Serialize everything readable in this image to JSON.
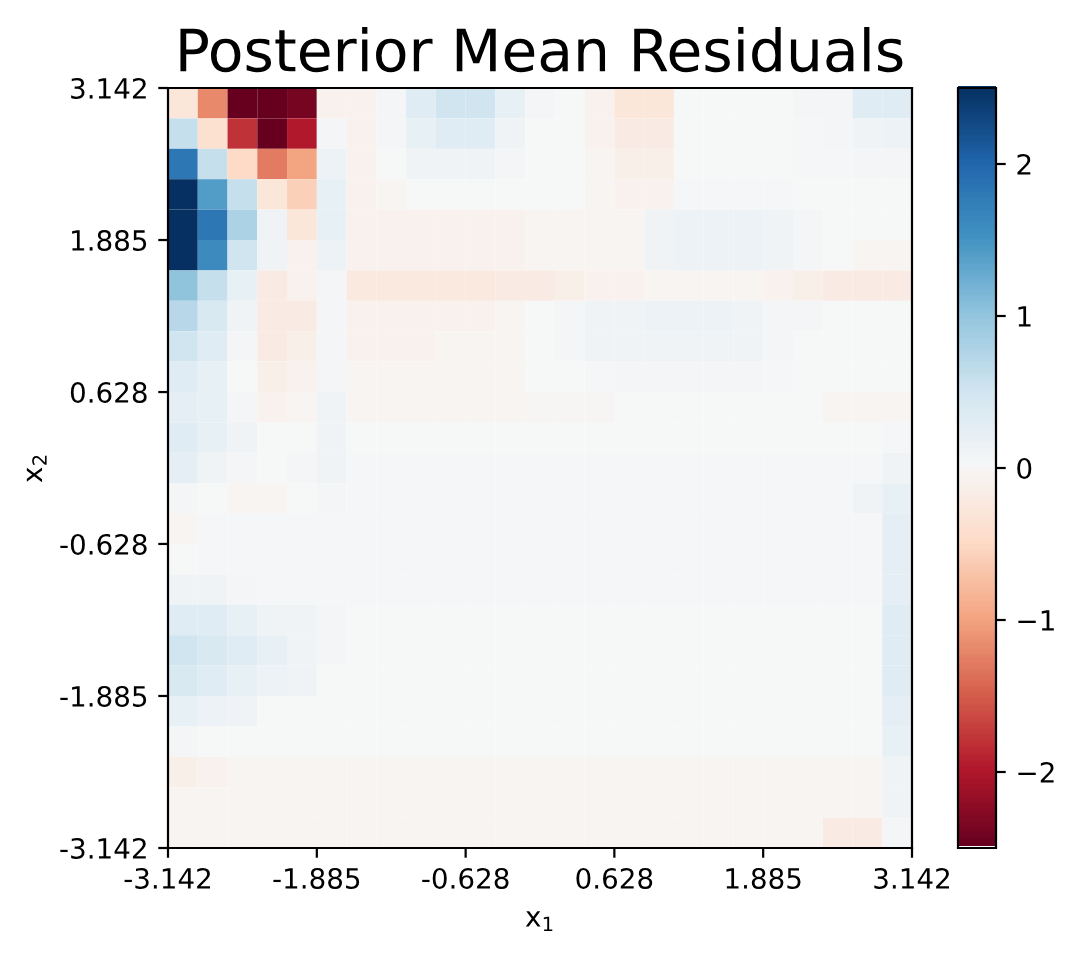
{
  "chart_data": {
    "type": "heatmap",
    "title": "Posterior Mean Residuals",
    "xlabel": "x$_{1}$",
    "ylabel": "x$_{2}$",
    "xlim": [
      -3.142,
      3.142
    ],
    "ylim": [
      -3.142,
      3.142
    ],
    "xticks": [
      -3.142,
      -1.885,
      -0.628,
      0.628,
      1.885,
      3.142
    ],
    "yticks": [
      -3.142,
      -1.885,
      -0.628,
      0.628,
      1.885,
      3.142
    ],
    "clim": [
      -2.5,
      2.5
    ],
    "cticks": [
      {
        "value": -2,
        "label": "−2"
      },
      {
        "value": -1,
        "label": "−1"
      },
      0,
      1,
      2
    ],
    "grid": false,
    "cells": [
      [
        -0.3,
        -1.2,
        -2.5,
        -2.5,
        -2.4,
        -0.1,
        -0.1,
        0.05,
        0.3,
        0.5,
        0.5,
        0.2,
        0.05,
        0,
        -0.1,
        -0.3,
        -0.3,
        0,
        0,
        0,
        0,
        0.05,
        0.05,
        0.3,
        0.3
      ],
      [
        0.6,
        -0.4,
        -1.8,
        -2.5,
        -2.0,
        0.05,
        -0.1,
        0.05,
        0.2,
        0.3,
        0.3,
        0.1,
        0,
        0,
        -0.1,
        -0.2,
        -0.2,
        0,
        0,
        0,
        0,
        0.02,
        0.05,
        0.1,
        0.15
      ],
      [
        1.8,
        0.6,
        -0.5,
        -1.3,
        -1.0,
        0.15,
        -0.1,
        0,
        0.1,
        0.1,
        0.1,
        0.05,
        0,
        0,
        -0.05,
        -0.15,
        -0.15,
        0,
        0,
        0,
        0,
        0.02,
        0.02,
        0.05,
        0.05
      ],
      [
        2.5,
        1.4,
        0.6,
        -0.3,
        -0.6,
        0.2,
        -0.1,
        -0.05,
        0,
        0,
        0,
        0,
        0,
        0,
        -0.05,
        -0.1,
        -0.1,
        0.02,
        0.02,
        0.02,
        0.02,
        0,
        0,
        0,
        0
      ],
      [
        2.5,
        1.8,
        0.8,
        0.1,
        -0.3,
        0.2,
        -0.1,
        -0.1,
        -0.1,
        -0.1,
        -0.1,
        -0.1,
        -0.05,
        -0.05,
        -0.05,
        -0.05,
        0.1,
        0.15,
        0.15,
        0.15,
        0.1,
        0.05,
        0,
        0,
        0
      ],
      [
        2.5,
        1.6,
        0.5,
        0.1,
        -0.1,
        0.15,
        -0.1,
        -0.1,
        -0.1,
        -0.1,
        -0.1,
        -0.1,
        -0.05,
        -0.05,
        -0.05,
        -0.05,
        0.1,
        0.15,
        0.15,
        0.15,
        0.1,
        0.05,
        0,
        -0.05,
        -0.05
      ],
      [
        1.0,
        0.6,
        0.2,
        -0.2,
        -0.1,
        0.05,
        -0.25,
        -0.25,
        -0.25,
        -0.25,
        -0.25,
        -0.2,
        -0.2,
        -0.15,
        -0.1,
        -0.1,
        -0.05,
        -0.05,
        -0.05,
        -0.05,
        -0.1,
        -0.15,
        -0.2,
        -0.2,
        -0.2
      ],
      [
        0.7,
        0.4,
        0.1,
        -0.2,
        -0.2,
        0.05,
        -0.1,
        -0.1,
        -0.1,
        -0.1,
        -0.1,
        -0.05,
        0,
        0.05,
        0.1,
        0.1,
        0.15,
        0.15,
        0.15,
        0.1,
        0.05,
        0.05,
        0,
        0,
        0
      ],
      [
        0.5,
        0.3,
        0.05,
        -0.2,
        -0.15,
        0.05,
        -0.1,
        -0.1,
        -0.1,
        -0.05,
        -0.05,
        -0.05,
        0,
        0.05,
        0.1,
        0.1,
        0.1,
        0.1,
        0.1,
        0.1,
        0.05,
        0,
        0,
        0,
        0
      ],
      [
        0.3,
        0.2,
        0,
        -0.15,
        -0.1,
        0.05,
        -0.05,
        -0.05,
        -0.05,
        -0.05,
        -0.05,
        -0.05,
        0,
        0,
        0.02,
        0.05,
        0.05,
        0.05,
        0.05,
        0.05,
        0.02,
        0,
        0,
        0,
        0
      ],
      [
        0.25,
        0.2,
        0.05,
        -0.1,
        -0.05,
        0.1,
        -0.05,
        -0.05,
        -0.05,
        -0.05,
        -0.05,
        -0.05,
        -0.02,
        -0.02,
        -0.02,
        0,
        0,
        0,
        0,
        0,
        0,
        0,
        -0.05,
        -0.05,
        -0.05
      ],
      [
        0.3,
        0.2,
        0.1,
        0,
        0,
        0.1,
        0,
        0,
        0,
        0,
        0,
        0,
        0,
        0,
        0,
        0,
        0,
        0,
        0,
        0,
        0,
        0,
        0,
        0,
        0.02
      ],
      [
        0.25,
        0.1,
        0.05,
        0,
        0.05,
        0.1,
        0.02,
        0.02,
        0.02,
        0.02,
        0.02,
        0.02,
        0.02,
        0.02,
        0.02,
        0.02,
        0.02,
        0.02,
        0.02,
        0.02,
        0.02,
        0.02,
        0.02,
        0.02,
        0.1
      ],
      [
        0.05,
        0,
        -0.05,
        -0.05,
        0,
        0.05,
        0.02,
        0.02,
        0.02,
        0.02,
        0.02,
        0.02,
        0.02,
        0.02,
        0.02,
        0.02,
        0.02,
        0.02,
        0.02,
        0.02,
        0.02,
        0.02,
        0.02,
        0.1,
        0.2
      ],
      [
        -0.05,
        0.02,
        0.02,
        0.02,
        0.02,
        0.02,
        0.02,
        0.02,
        0.02,
        0.02,
        0.02,
        0.02,
        0.02,
        0.02,
        0.02,
        0.02,
        0.02,
        0.02,
        0.02,
        0.02,
        0.02,
        0.02,
        0.02,
        0.02,
        0.25
      ],
      [
        0,
        0.02,
        0.02,
        0.02,
        0.02,
        0.02,
        0.02,
        0.02,
        0.02,
        0.02,
        0.02,
        0.02,
        0.02,
        0.02,
        0.02,
        0.02,
        0.02,
        0.02,
        0.02,
        0.02,
        0.02,
        0.02,
        0.02,
        0.02,
        0.25
      ],
      [
        0.1,
        0.1,
        0.05,
        0.02,
        0.02,
        0.02,
        0.02,
        0.02,
        0.02,
        0.02,
        0.02,
        0.02,
        0.02,
        0.02,
        0.02,
        0.02,
        0.02,
        0.02,
        0.02,
        0.02,
        0.02,
        0.02,
        0.02,
        0.02,
        0.25
      ],
      [
        0.3,
        0.3,
        0.2,
        0.1,
        0.1,
        0.05,
        0,
        0,
        0,
        0,
        0,
        0,
        0,
        0,
        0,
        0,
        0,
        0,
        0,
        0,
        0,
        0,
        0,
        0,
        0.3
      ],
      [
        0.5,
        0.4,
        0.3,
        0.2,
        0.1,
        0.05,
        0,
        0,
        0,
        0,
        0,
        0,
        0,
        0,
        0,
        0,
        0,
        0,
        0,
        0,
        0,
        0,
        0,
        0,
        0.3
      ],
      [
        0.4,
        0.3,
        0.2,
        0.15,
        0.1,
        0,
        0,
        0,
        0,
        0,
        0,
        0,
        0,
        0,
        0,
        0,
        0,
        0,
        0,
        0,
        0,
        0,
        0,
        0,
        0.3
      ],
      [
        0.2,
        0.15,
        0.1,
        0,
        0,
        0,
        0,
        0,
        0,
        0,
        0,
        0,
        0,
        0,
        0,
        0,
        0,
        0,
        0,
        0,
        0,
        0,
        0,
        0,
        0.25
      ],
      [
        0.05,
        0,
        0,
        0,
        0,
        0,
        0,
        0,
        0,
        0,
        0,
        0,
        0,
        0,
        0,
        0,
        0,
        0,
        0,
        0,
        0,
        0,
        0,
        0,
        0.2
      ],
      [
        -0.15,
        -0.1,
        -0.05,
        -0.05,
        -0.05,
        -0.05,
        -0.05,
        -0.05,
        -0.05,
        -0.05,
        -0.05,
        -0.05,
        -0.05,
        -0.05,
        -0.05,
        -0.05,
        -0.05,
        -0.05,
        -0.05,
        -0.05,
        -0.05,
        -0.05,
        -0.05,
        -0.05,
        0.1
      ],
      [
        -0.05,
        -0.05,
        -0.05,
        -0.05,
        -0.05,
        -0.05,
        -0.05,
        -0.05,
        -0.05,
        -0.05,
        -0.05,
        -0.05,
        -0.05,
        -0.05,
        -0.05,
        -0.05,
        -0.05,
        -0.05,
        -0.05,
        -0.05,
        -0.05,
        -0.05,
        -0.05,
        -0.05,
        0.1
      ],
      [
        -0.05,
        -0.05,
        -0.05,
        -0.05,
        -0.05,
        -0.05,
        -0.05,
        -0.05,
        -0.05,
        -0.05,
        -0.05,
        -0.05,
        -0.05,
        -0.05,
        -0.05,
        -0.05,
        -0.05,
        -0.05,
        -0.05,
        -0.05,
        -0.05,
        -0.05,
        -0.2,
        -0.2,
        0.05
      ]
    ]
  }
}
